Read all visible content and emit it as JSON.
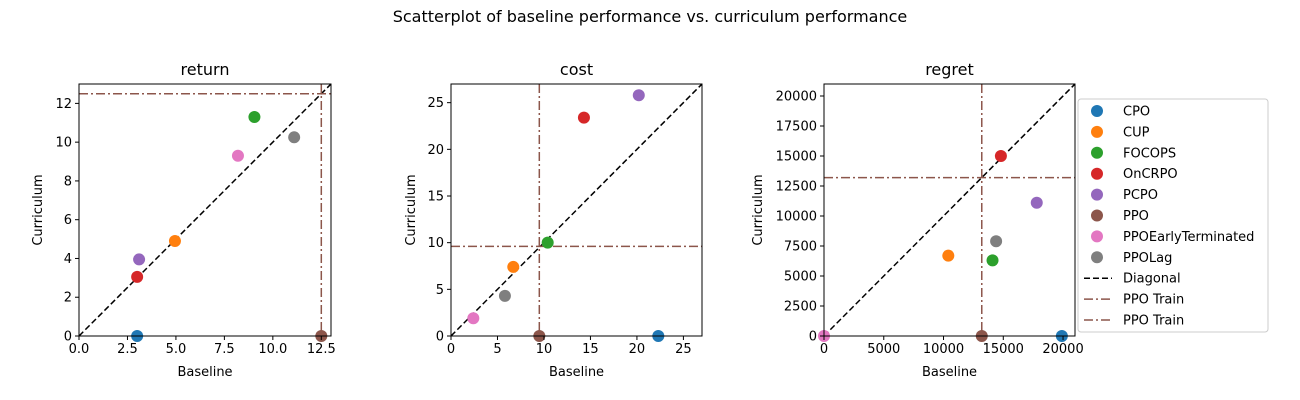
{
  "figure": {
    "title": "Scatterplot of baseline performance vs. curriculum performance"
  },
  "legend": {
    "placement": "right",
    "entries": [
      {
        "label": "CPO",
        "kind": "marker",
        "color": "#1f77b4"
      },
      {
        "label": "CUP",
        "kind": "marker",
        "color": "#ff7f0e"
      },
      {
        "label": "FOCOPS",
        "kind": "marker",
        "color": "#2ca02c"
      },
      {
        "label": "OnCRPO",
        "kind": "marker",
        "color": "#d62728"
      },
      {
        "label": "PCPO",
        "kind": "marker",
        "color": "#9467bd"
      },
      {
        "label": "PPO",
        "kind": "marker",
        "color": "#8c564b"
      },
      {
        "label": "PPOEarlyTerminated",
        "kind": "marker",
        "color": "#e377c2"
      },
      {
        "label": "PPOLag",
        "kind": "marker",
        "color": "#7f7f7f"
      },
      {
        "label": "Diagonal",
        "kind": "dashed",
        "color": "#000000"
      },
      {
        "label": "PPO Train",
        "kind": "dashdot",
        "color": "#8c564b"
      },
      {
        "label": "PPO Train",
        "kind": "dashdot",
        "color": "#8c564b"
      }
    ]
  },
  "chart_data": [
    {
      "type": "scatter",
      "title": "return",
      "xlabel": "Baseline",
      "ylabel": "Curriculum",
      "xlim": [
        0,
        13
      ],
      "ylim": [
        0,
        13
      ],
      "xticks": [
        0,
        2.5,
        5,
        7.5,
        10,
        12.5
      ],
      "xtick_labels": [
        "0.0",
        "2.5",
        "5.0",
        "7.5",
        "10.0",
        "12.5"
      ],
      "yticks": [
        0,
        2,
        4,
        6,
        8,
        10,
        12
      ],
      "ytick_labels": [
        "0",
        "2",
        "4",
        "6",
        "8",
        "10",
        "12"
      ],
      "grid": false,
      "ppo_train": {
        "x": 12.5,
        "y": 12.5
      },
      "points": [
        {
          "series": "CPO",
          "x": 3.0,
          "y": 0.0
        },
        {
          "series": "CUP",
          "x": 4.95,
          "y": 4.9
        },
        {
          "series": "FOCOPS",
          "x": 9.05,
          "y": 11.3
        },
        {
          "series": "OnCRPO",
          "x": 3.0,
          "y": 3.05
        },
        {
          "series": "PCPO",
          "x": 3.1,
          "y": 3.95
        },
        {
          "series": "PPO",
          "x": 12.5,
          "y": 0.0
        },
        {
          "series": "PPOEarlyTerminated",
          "x": 8.2,
          "y": 9.3
        },
        {
          "series": "PPOLag",
          "x": 11.1,
          "y": 10.25
        }
      ]
    },
    {
      "type": "scatter",
      "title": "cost",
      "xlabel": "Baseline",
      "ylabel": "Curriculum",
      "xlim": [
        0,
        27
      ],
      "ylim": [
        0,
        27
      ],
      "xticks": [
        0,
        5,
        10,
        15,
        20,
        25
      ],
      "xtick_labels": [
        "0",
        "5",
        "10",
        "15",
        "20",
        "25"
      ],
      "yticks": [
        0,
        5,
        10,
        15,
        20,
        25
      ],
      "ytick_labels": [
        "0",
        "5",
        "10",
        "15",
        "20",
        "25"
      ],
      "grid": false,
      "ppo_train": {
        "x": 9.5,
        "y": 9.6
      },
      "points": [
        {
          "series": "CPO",
          "x": 22.3,
          "y": 0.0
        },
        {
          "series": "CUP",
          "x": 6.7,
          "y": 7.4
        },
        {
          "series": "FOCOPS",
          "x": 10.4,
          "y": 10.0
        },
        {
          "series": "OnCRPO",
          "x": 14.3,
          "y": 23.4
        },
        {
          "series": "PCPO",
          "x": 20.2,
          "y": 25.8
        },
        {
          "series": "PPO",
          "x": 9.5,
          "y": 0.0
        },
        {
          "series": "PPOEarlyTerminated",
          "x": 2.4,
          "y": 1.9
        },
        {
          "series": "PPOLag",
          "x": 5.8,
          "y": 4.3
        }
      ]
    },
    {
      "type": "scatter",
      "title": "regret",
      "xlabel": "Baseline",
      "ylabel": "Curriculum",
      "xlim": [
        0,
        21000
      ],
      "ylim": [
        0,
        21000
      ],
      "xticks": [
        0,
        5000,
        10000,
        15000,
        20000
      ],
      "xtick_labels": [
        "0",
        "5000",
        "10000",
        "15000",
        "20000"
      ],
      "yticks": [
        0,
        2500,
        5000,
        7500,
        10000,
        12500,
        15000,
        17500,
        20000
      ],
      "ytick_labels": [
        "0",
        "2500",
        "5000",
        "7500",
        "10000",
        "12500",
        "15000",
        "17500",
        "20000"
      ],
      "grid": false,
      "ppo_train": {
        "x": 13200,
        "y": 13200
      },
      "points": [
        {
          "series": "CPO",
          "x": 19900,
          "y": 0
        },
        {
          "series": "CUP",
          "x": 10400,
          "y": 6700
        },
        {
          "series": "FOCOPS",
          "x": 14100,
          "y": 6300
        },
        {
          "series": "OnCRPO",
          "x": 14800,
          "y": 15000
        },
        {
          "series": "PCPO",
          "x": 17800,
          "y": 11100
        },
        {
          "series": "PPO",
          "x": 13200,
          "y": 0
        },
        {
          "series": "PPOEarlyTerminated",
          "x": 0,
          "y": 0
        },
        {
          "series": "PPOLag",
          "x": 14400,
          "y": 7900
        }
      ]
    }
  ]
}
